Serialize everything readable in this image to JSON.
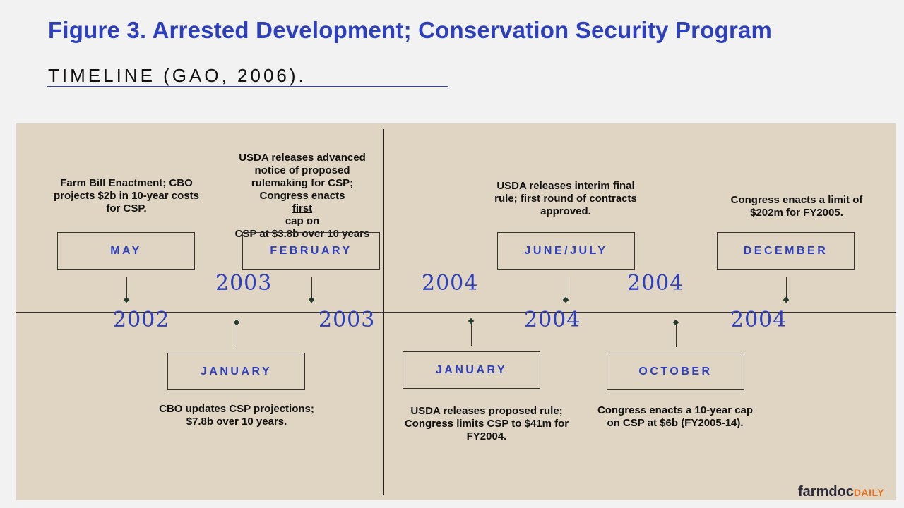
{
  "title": "Figure 3. Arrested Development; Conservation Security Program",
  "subtitle": "TIMELINE (GAO, 2006).",
  "events": {
    "may2002": {
      "month": "MAY",
      "year": "2002",
      "desc": [
        "Farm Bill Enactment; CBO",
        "projects $2b in 10-year costs",
        "for CSP."
      ]
    },
    "jan2003": {
      "month": "JANUARY",
      "year": "2003",
      "desc": [
        "CBO updates CSP projections;",
        "$7.8b over 10 years."
      ]
    },
    "feb2003": {
      "month": "FEBRUARY",
      "year": "2003",
      "desc": [
        "USDA releases advanced",
        "notice of proposed",
        "rulemaking for CSP;",
        "Congress enacts ",
        "first",
        " cap on",
        "CSP at $3.8b over 10 years"
      ]
    },
    "jan2004": {
      "month": "JANUARY",
      "year": "2004",
      "desc": [
        "USDA releases proposed rule;",
        "Congress limits CSP to $41m for",
        "FY2004."
      ]
    },
    "junjul2004": {
      "month": "JUNE/JULY",
      "year": "2004",
      "desc": [
        "USDA releases interim final",
        "rule; first round of contracts",
        "approved."
      ]
    },
    "oct2004": {
      "month": "OCTOBER",
      "year": "2004",
      "desc": [
        "Congress enacts a 10-year cap",
        "on CSP at $6b (FY2005-14)."
      ]
    },
    "dec2004": {
      "month": "DECEMBER",
      "year": "2004",
      "desc": [
        "Congress enacts a limit of",
        "$202m for FY2005."
      ]
    }
  },
  "logo": {
    "part1": "farmdoc",
    "part2": "DAILY"
  },
  "colors": {
    "accent": "#2b3fbf",
    "panel": "#e0d5c3",
    "background": "#f2f2f2",
    "logo_orange": "#e8711e"
  }
}
